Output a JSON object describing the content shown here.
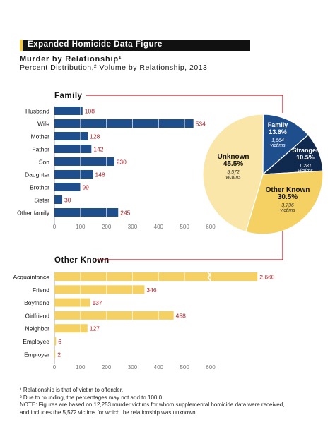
{
  "header": {
    "label": "Expanded Homicide Data Figure"
  },
  "title": "Murder by Relationship¹",
  "subtitle": "Percent Distribution,² Volume by Relationship, 2013",
  "colors": {
    "family": "#1f4e8c",
    "other_known": "#f5d163",
    "unknown": "#f9e6a8",
    "stranger": "#0f2a4e",
    "connector": "#b0242a",
    "value_label": "#b0242a"
  },
  "chart_data": [
    {
      "type": "bar",
      "orientation": "horizontal",
      "title": "Family",
      "categories": [
        "Husband",
        "Wife",
        "Mother",
        "Father",
        "Son",
        "Daughter",
        "Brother",
        "Sister",
        "Other family"
      ],
      "values": [
        108,
        534,
        128,
        142,
        230,
        148,
        99,
        30,
        245
      ],
      "value_labels": [
        "108",
        "534",
        "128",
        "142",
        "230",
        "148",
        "99",
        "30",
        "245"
      ],
      "xlim": [
        0,
        600
      ],
      "xticks": [
        0,
        100,
        200,
        300,
        400,
        500,
        600
      ],
      "xtick_labels": [
        "0",
        "100",
        "200",
        "300",
        "400",
        "500",
        "600"
      ],
      "grid": "vertical lines every 100 inside bars",
      "color": "#1f4e8c"
    },
    {
      "type": "pie",
      "slices": [
        {
          "label": "Family",
          "percent_label": "13.6%",
          "percent": 13.6,
          "victims_label": "1,664",
          "victims_word": "victims",
          "color": "#1f4e8c"
        },
        {
          "label": "Stranger",
          "percent_label": "10.5%",
          "percent": 10.5,
          "victims_label": "1,281",
          "victims_word": "victims",
          "color": "#0f2a4e"
        },
        {
          "label": "Other Known",
          "percent_label": "30.5%",
          "percent": 30.5,
          "victims_label": "3,736",
          "victims_word": "victims",
          "color": "#f5d163"
        },
        {
          "label": "Unknown",
          "percent_label": "45.5%",
          "percent": 45.5,
          "victims_label": "5,572",
          "victims_word": "victims",
          "color": "#f9e6a8"
        }
      ]
    },
    {
      "type": "bar",
      "orientation": "horizontal",
      "title": "Other Known",
      "categories": [
        "Acquaintance",
        "Friend",
        "Boyfriend",
        "Girlfriend",
        "Neighbor",
        "Employee",
        "Employer"
      ],
      "values": [
        2660,
        346,
        137,
        458,
        127,
        6,
        2
      ],
      "value_labels": [
        "2,660",
        "346",
        "137",
        "458",
        "127",
        "6",
        "2"
      ],
      "axis_break": {
        "bar": "Acquaintance",
        "shown_as_beyond": 600
      },
      "xlim": [
        0,
        600
      ],
      "xticks": [
        0,
        100,
        200,
        300,
        400,
        500,
        600
      ],
      "xtick_labels": [
        "0",
        "100",
        "200",
        "300",
        "400",
        "500",
        "600"
      ],
      "grid": "vertical lines every 100 inside bars",
      "color": "#f5d163"
    }
  ],
  "footnotes": [
    "¹ Relationship is that of victim to offender.",
    "² Due to rounding, the percentages may not add to 100.0.",
    "NOTE:  Figures are based on 12,253 murder victims for whom supplemental homicide data were received,",
    "and includes the 5,572 victims for which the relationship was unknown."
  ]
}
